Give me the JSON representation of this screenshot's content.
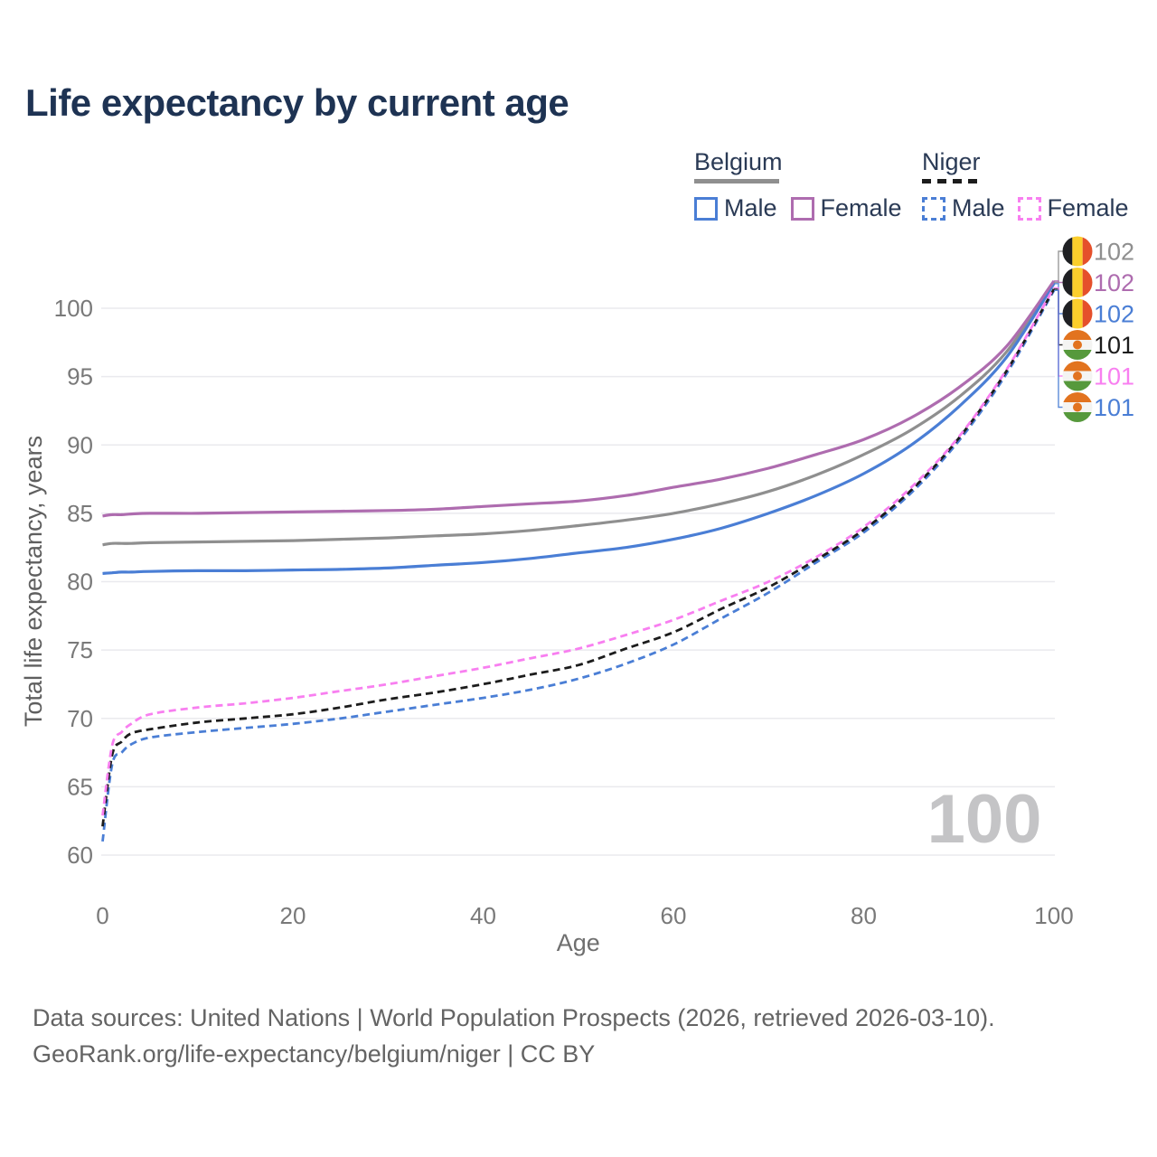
{
  "title": "Life expectancy by current age",
  "watermark": "100",
  "legend": {
    "groups": [
      {
        "label": "Belgium",
        "line_style": "solid",
        "line_color": "#8f8f8f",
        "items": [
          {
            "label": "Male",
            "color": "#4a7ed5",
            "dashed": false
          },
          {
            "label": "Female",
            "color": "#ae6caf",
            "dashed": false
          }
        ]
      },
      {
        "label": "Niger",
        "line_style": "dashed",
        "line_color": "#1c1c1c",
        "items": [
          {
            "label": "Male",
            "color": "#4a7ed5",
            "dashed": true
          },
          {
            "label": "Female",
            "color": "#f87ff0",
            "dashed": true
          }
        ]
      }
    ]
  },
  "footer": {
    "line1": "Data sources: United Nations | World Population Prospects (2026, retrieved 2026-03-10).",
    "line2": "GeoRank.org/life-expectancy/belgium/niger | CC BY"
  },
  "icons": {
    "belgium_flag": {
      "stripes": [
        "#1f2023",
        "#fbce2c",
        "#e5502b"
      ]
    },
    "niger_flag": {
      "bands": [
        "#e2731f",
        "#f4f4f2",
        "#56993c"
      ],
      "dot": "#e2731f"
    }
  },
  "chart_data": {
    "type": "line",
    "title": "Life expectancy by current age",
    "xlabel": "Age",
    "ylabel": "Total life expectancy, years",
    "xlim": [
      0,
      100
    ],
    "ylim": [
      60,
      100
    ],
    "x_ticks": [
      0,
      20,
      40,
      60,
      80,
      100
    ],
    "y_ticks": [
      60,
      65,
      70,
      75,
      80,
      85,
      90,
      95,
      100
    ],
    "grid": true,
    "legend_position": "top-right",
    "x": [
      0,
      1,
      2,
      3,
      5,
      10,
      15,
      20,
      25,
      30,
      35,
      40,
      45,
      50,
      55,
      60,
      65,
      70,
      75,
      80,
      85,
      90,
      95,
      100
    ],
    "series": [
      {
        "name": "Belgium Total",
        "country": "Belgium",
        "sex": "Both",
        "color": "#8f8f8f",
        "dashed": false,
        "flag": "belgium",
        "row": 0,
        "end_label": "102",
        "values": [
          82.7,
          82.8,
          82.8,
          82.8,
          82.85,
          82.9,
          82.95,
          83.0,
          83.1,
          83.2,
          83.35,
          83.5,
          83.75,
          84.1,
          84.5,
          85.0,
          85.7,
          86.6,
          87.8,
          89.3,
          91.1,
          93.5,
          96.8,
          101.9
        ]
      },
      {
        "name": "Belgium Male",
        "country": "Belgium",
        "sex": "Male",
        "color": "#4a7ed5",
        "dashed": false,
        "flag": "belgium",
        "row": 2,
        "end_label": "102",
        "values": [
          80.6,
          80.65,
          80.7,
          80.7,
          80.75,
          80.8,
          80.8,
          80.85,
          80.9,
          81.0,
          81.2,
          81.4,
          81.7,
          82.1,
          82.5,
          83.1,
          83.9,
          85.0,
          86.3,
          87.9,
          90.0,
          92.8,
          96.4,
          101.8
        ]
      },
      {
        "name": "Belgium Female",
        "country": "Belgium",
        "sex": "Female",
        "color": "#ae6caf",
        "dashed": false,
        "flag": "belgium",
        "row": 1,
        "end_label": "102",
        "values": [
          84.8,
          84.9,
          84.9,
          84.95,
          85.0,
          85.0,
          85.05,
          85.1,
          85.15,
          85.2,
          85.3,
          85.5,
          85.7,
          85.9,
          86.3,
          86.9,
          87.5,
          88.3,
          89.3,
          90.4,
          92.0,
          94.2,
          97.2,
          102.0
        ]
      },
      {
        "name": "Niger Male",
        "country": "Niger",
        "sex": "Male",
        "color": "#4a7ed5",
        "dashed": true,
        "flag": "niger",
        "row": 5,
        "end_label": "101",
        "values": [
          61.0,
          66.6,
          67.5,
          68.1,
          68.6,
          69.0,
          69.3,
          69.6,
          70.0,
          70.5,
          71.0,
          71.5,
          72.1,
          72.9,
          74.0,
          75.4,
          77.3,
          79.2,
          81.4,
          83.6,
          86.5,
          90.3,
          95.2,
          101.3
        ]
      },
      {
        "name": "Niger Total",
        "country": "Niger",
        "sex": "Both",
        "color": "#1c1c1c",
        "dashed": true,
        "flag": "niger",
        "row": 3,
        "end_label": "101",
        "values": [
          62.1,
          67.3,
          68.3,
          68.9,
          69.2,
          69.7,
          70.0,
          70.3,
          70.8,
          71.4,
          71.9,
          72.5,
          73.2,
          73.9,
          75.1,
          76.3,
          78.0,
          79.6,
          81.6,
          83.8,
          86.7,
          90.5,
          95.4,
          101.4
        ]
      },
      {
        "name": "Niger Female",
        "country": "Niger",
        "sex": "Female",
        "color": "#f87ff0",
        "dashed": true,
        "flag": "niger",
        "row": 4,
        "end_label": "101",
        "values": [
          62.9,
          68.0,
          69.0,
          69.6,
          70.3,
          70.8,
          71.1,
          71.5,
          72.0,
          72.5,
          73.1,
          73.7,
          74.4,
          75.1,
          76.1,
          77.2,
          78.6,
          80.0,
          81.8,
          84.0,
          86.9,
          90.6,
          95.5,
          101.5
        ]
      }
    ]
  }
}
